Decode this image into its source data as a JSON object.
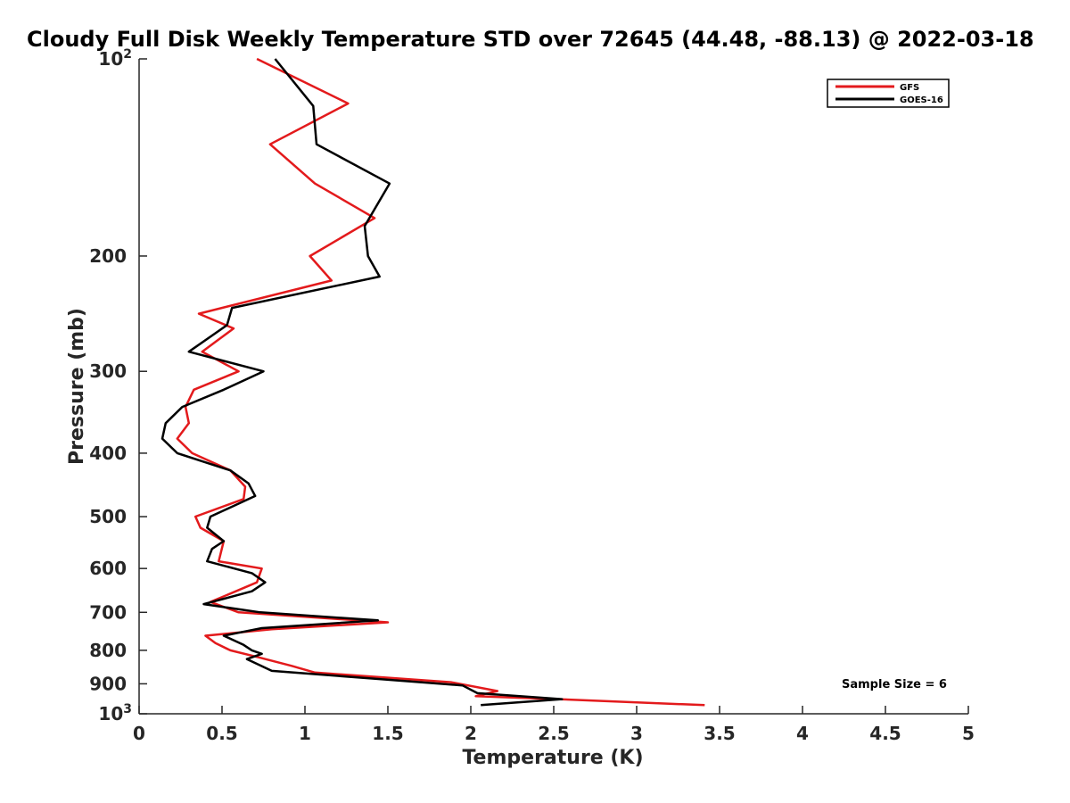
{
  "chart_data": {
    "type": "line",
    "title": "Cloudy Full Disk Weekly Temperature STD over 72645 (44.48, -88.13) @ 2022-03-18",
    "xlabel": "Temperature (K)",
    "ylabel": "Pressure (mb)",
    "xlim": [
      0,
      5
    ],
    "ylim": [
      100,
      1000
    ],
    "yscale": "log",
    "y_reversed": true,
    "grid": false,
    "legend_position": "top-right",
    "annotation": "Sample Size = 6",
    "xticks": [
      {
        "value": 0,
        "label": "0"
      },
      {
        "value": 0.5,
        "label": "0.5"
      },
      {
        "value": 1,
        "label": "1"
      },
      {
        "value": 1.5,
        "label": "1.5"
      },
      {
        "value": 2,
        "label": "2"
      },
      {
        "value": 2.5,
        "label": "2.5"
      },
      {
        "value": 3,
        "label": "3"
      },
      {
        "value": 3.5,
        "label": "3.5"
      },
      {
        "value": 4,
        "label": "4"
      },
      {
        "value": 4.5,
        "label": "4.5"
      },
      {
        "value": 5,
        "label": "5"
      }
    ],
    "yticks": [
      {
        "value": 100,
        "base": "10",
        "exp": "2"
      },
      {
        "value": 200,
        "base": "200",
        "exp": ""
      },
      {
        "value": 300,
        "base": "300",
        "exp": ""
      },
      {
        "value": 400,
        "base": "400",
        "exp": ""
      },
      {
        "value": 500,
        "base": "500",
        "exp": ""
      },
      {
        "value": 600,
        "base": "600",
        "exp": ""
      },
      {
        "value": 700,
        "base": "700",
        "exp": ""
      },
      {
        "value": 800,
        "base": "800",
        "exp": ""
      },
      {
        "value": 900,
        "base": "900",
        "exp": ""
      },
      {
        "value": 1000,
        "base": "10",
        "exp": "3"
      }
    ],
    "series": [
      {
        "name": "GFS",
        "color": "#e31a1c",
        "points": [
          [
            0.71,
            100
          ],
          [
            1.26,
            117
          ],
          [
            0.79,
            135
          ],
          [
            1.06,
            155
          ],
          [
            1.42,
            175
          ],
          [
            1.03,
            200
          ],
          [
            1.16,
            218
          ],
          [
            0.36,
            245
          ],
          [
            0.57,
            258
          ],
          [
            0.38,
            280
          ],
          [
            0.6,
            300
          ],
          [
            0.33,
            320
          ],
          [
            0.28,
            340
          ],
          [
            0.3,
            360
          ],
          [
            0.23,
            380
          ],
          [
            0.32,
            400
          ],
          [
            0.55,
            425
          ],
          [
            0.64,
            450
          ],
          [
            0.63,
            470
          ],
          [
            0.34,
            500
          ],
          [
            0.37,
            520
          ],
          [
            0.51,
            545
          ],
          [
            0.48,
            585
          ],
          [
            0.74,
            600
          ],
          [
            0.71,
            630
          ],
          [
            0.43,
            675
          ],
          [
            0.6,
            700
          ],
          [
            1.5,
            725
          ],
          [
            0.8,
            743
          ],
          [
            0.4,
            760
          ],
          [
            0.46,
            780
          ],
          [
            0.55,
            800
          ],
          [
            0.72,
            820
          ],
          [
            0.92,
            845
          ],
          [
            1.06,
            865
          ],
          [
            1.88,
            895
          ],
          [
            2.16,
            923
          ],
          [
            2.03,
            940
          ],
          [
            2.52,
            950
          ],
          [
            3.41,
            970
          ]
        ]
      },
      {
        "name": "GOES-16",
        "color": "#000000",
        "points": [
          [
            0.82,
            100
          ],
          [
            1.05,
            118
          ],
          [
            1.07,
            135
          ],
          [
            1.51,
            155
          ],
          [
            1.36,
            180
          ],
          [
            1.38,
            200
          ],
          [
            1.45,
            215
          ],
          [
            0.56,
            240
          ],
          [
            0.53,
            255
          ],
          [
            0.3,
            280
          ],
          [
            0.75,
            300
          ],
          [
            0.51,
            320
          ],
          [
            0.26,
            340
          ],
          [
            0.16,
            360
          ],
          [
            0.14,
            380
          ],
          [
            0.23,
            400
          ],
          [
            0.55,
            425
          ],
          [
            0.66,
            445
          ],
          [
            0.7,
            465
          ],
          [
            0.43,
            500
          ],
          [
            0.41,
            520
          ],
          [
            0.51,
            545
          ],
          [
            0.44,
            560
          ],
          [
            0.41,
            585
          ],
          [
            0.68,
            610
          ],
          [
            0.76,
            630
          ],
          [
            0.68,
            650
          ],
          [
            0.39,
            680
          ],
          [
            0.73,
            700
          ],
          [
            1.44,
            720
          ],
          [
            0.74,
            740
          ],
          [
            0.51,
            760
          ],
          [
            0.63,
            785
          ],
          [
            0.68,
            800
          ],
          [
            0.74,
            810
          ],
          [
            0.65,
            825
          ],
          [
            0.8,
            860
          ],
          [
            1.95,
            905
          ],
          [
            2.04,
            930
          ],
          [
            2.55,
            950
          ],
          [
            2.06,
            970
          ]
        ]
      }
    ]
  }
}
